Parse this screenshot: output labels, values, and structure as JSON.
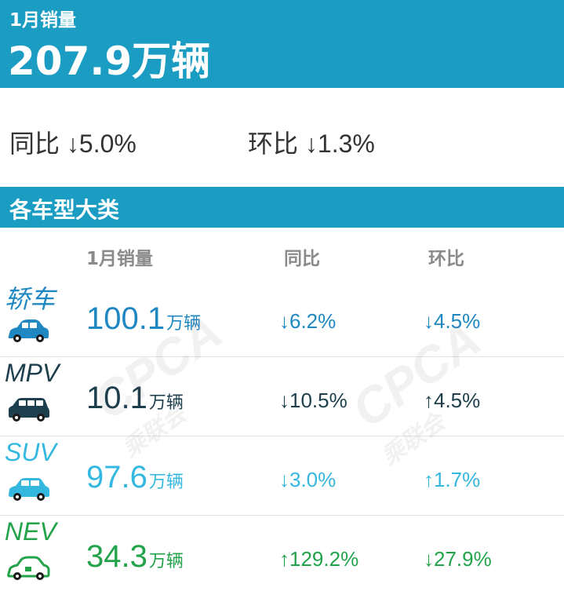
{
  "header": {
    "label": "1月销量",
    "value": "207.9万辆"
  },
  "summary": {
    "yoy": "同比 ↓5.0%",
    "mom": "环比 ↓1.3%"
  },
  "section": {
    "title": "各车型大类"
  },
  "columns": {
    "sales": "1月销量",
    "yoy": "同比",
    "mom": "环比"
  },
  "rows": [
    {
      "name": "轿车",
      "value": "100.1",
      "unit": "万辆",
      "yoy": "↓6.2%",
      "mom": "↓4.5%",
      "color": "#1f87c1",
      "icon": "sedan-icon"
    },
    {
      "name": "MPV",
      "value": "10.1",
      "unit": "万辆",
      "yoy": "↓10.5%",
      "mom": "↑4.5%",
      "color": "#1d3e4c",
      "icon": "mpv-icon"
    },
    {
      "name": "SUV",
      "value": "97.6",
      "unit": "万辆",
      "yoy": "↓3.0%",
      "mom": "↑1.7%",
      "color": "#35b8e0",
      "icon": "suv-icon"
    },
    {
      "name": "NEV",
      "value": "34.3",
      "unit": "万辆",
      "yoy": "↑129.2%",
      "mom": "↓27.9%",
      "color": "#22a34a",
      "icon": "nev-icon"
    }
  ],
  "watermark": {
    "text": "CPCA",
    "subtext": "乘联会"
  }
}
